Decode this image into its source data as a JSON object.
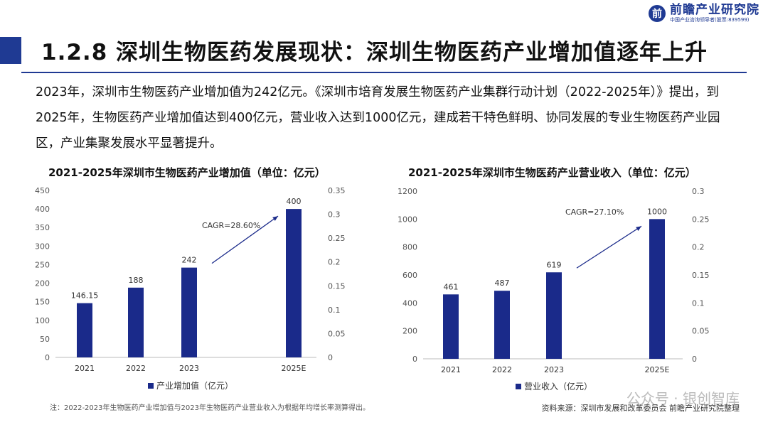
{
  "brand": {
    "name": "前瞻产业研究院",
    "tagline": "中国产业咨询领导者(股票:839599)"
  },
  "title": "1.2.8 深圳生物医药发展现状：深圳生物医药产业增加值逐年上升",
  "paragraph": "2023年，深圳市生物医药产业增加值为242亿元。《深圳市培育发展生物医药产业集群行动计划（2022-2025年）》提出，到2025年，生物医药产业增加值达到400亿元，营业收入达到1000亿元，建成若干特色鲜明、协同发展的专业生物医药产业园区，产业集聚发展水平显著提升。",
  "chart_data": [
    {
      "type": "bar",
      "title": "2021-2025年深圳市生物医药产业增加值（单位：亿元）",
      "categories": [
        "2021",
        "2022",
        "2023",
        "2025E"
      ],
      "series": [
        {
          "name": "产业增加值（亿元）",
          "values": [
            146.15,
            188,
            242,
            400
          ]
        }
      ],
      "value_labels": [
        "146.15",
        "188",
        "242",
        "400"
      ],
      "ylim": [
        0,
        450
      ],
      "yticks": [
        "0",
        "50",
        "100",
        "150",
        "200",
        "250",
        "300",
        "350",
        "400",
        "450"
      ],
      "y2lim": [
        0,
        0.35
      ],
      "y2ticks": [
        "0",
        "0.05",
        "0.1",
        "0.15",
        "0.2",
        "0.25",
        "0.3",
        "0.35"
      ],
      "annotation": "CAGR=28.60%",
      "legend": "bottom",
      "color": "#1a2a8a"
    },
    {
      "type": "bar",
      "title": "2021-2025年深圳市生物医药产业营业收入（单位：亿元）",
      "categories": [
        "2021",
        "2022",
        "2023",
        "2025E"
      ],
      "series": [
        {
          "name": "营业收入（亿元）",
          "values": [
            461,
            487,
            619,
            1000
          ]
        }
      ],
      "value_labels": [
        "461",
        "487",
        "619",
        "1000"
      ],
      "ylim": [
        0,
        1200
      ],
      "yticks": [
        "0",
        "200",
        "400",
        "600",
        "800",
        "1000",
        "1200"
      ],
      "y2lim": [
        0,
        0.3
      ],
      "y2ticks": [
        "0",
        "0.05",
        "0.1",
        "0.15",
        "0.2",
        "0.25",
        "0.3"
      ],
      "annotation": "CAGR=27.10%",
      "legend": "bottom",
      "color": "#1a2a8a"
    }
  ],
  "footnote": "注：2022-2023年生物医药产业增加值与2023年生物医药产业营业收入为根据年均增长率测算得出。",
  "source": "资料来源：深圳市发展和改革委员会 前瞻产业研究院整理",
  "watermark": "公众号 · 银创智库"
}
